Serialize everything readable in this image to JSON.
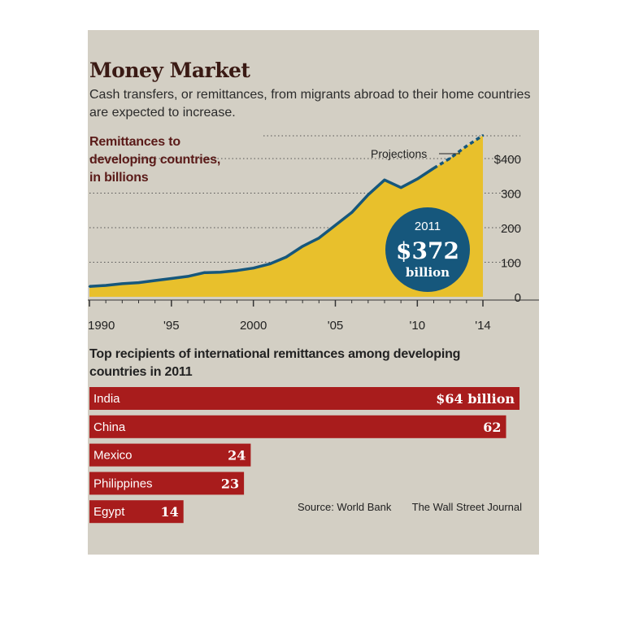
{
  "title": "Money Market",
  "subtitle": "Cash transfers, or remittances, from migrants abroad to their home countries are expected to increase.",
  "chart_data": [
    {
      "type": "area",
      "title": "Remittances to developing countries, in billions",
      "x": [
        1990,
        1991,
        1992,
        1993,
        1994,
        1995,
        1996,
        1997,
        1998,
        1999,
        2000,
        2001,
        2002,
        2003,
        2004,
        2005,
        2006,
        2007,
        2008,
        2009,
        2010,
        2011,
        2012,
        2013,
        2014
      ],
      "series": [
        {
          "values": [
            30,
            33,
            38,
            41,
            47,
            53,
            59,
            70,
            71,
            76,
            83,
            95,
            115,
            146,
            170,
            207,
            244,
            295,
            338,
            316,
            341,
            372,
            401,
            436,
            467
          ]
        }
      ],
      "actual_until": 2011,
      "projection_label": "Projections",
      "xlim": [
        1990,
        2014
      ],
      "ylim": [
        0,
        400
      ],
      "x_tick_labels": [
        "1990",
        "'95",
        "2000",
        "'05",
        "'10",
        "'14"
      ],
      "y_tick_labels": [
        "0",
        "100",
        "200",
        "300",
        "$400"
      ],
      "callout": {
        "year": "2011",
        "value": "$372",
        "unit": "billion"
      },
      "grid": "dotted horizontal",
      "colors": {
        "fill": "#e8c02c",
        "line": "#16577c",
        "callout": "#16577c"
      }
    },
    {
      "type": "bar",
      "title": "Top recipients of international remittances among developing countries in 2011",
      "categories": [
        "India",
        "China",
        "Mexico",
        "Philippines",
        "Egypt"
      ],
      "values": [
        64,
        62,
        24,
        23,
        14
      ],
      "value_labels": [
        "$64 billion",
        "62",
        "24",
        "23",
        "14"
      ],
      "orientation": "horizontal",
      "colors": {
        "bar": "#a81c1c"
      }
    }
  ],
  "source": "Source: World Bank",
  "credit": "The Wall Street Journal"
}
